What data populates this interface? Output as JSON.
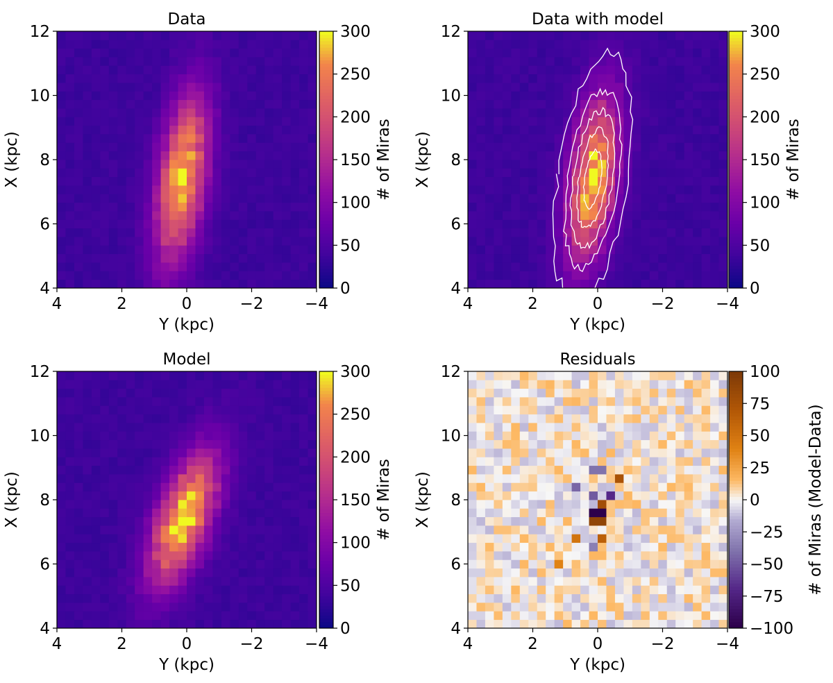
{
  "chart_data": [
    {
      "type": "heatmap",
      "title": "Data",
      "xlabel": "Y (kpc)",
      "ylabel": "X (kpc)",
      "xlim": [
        4,
        -4
      ],
      "ylim": [
        4,
        12
      ],
      "xticks": [
        "4",
        "2",
        "0",
        "−2",
        "−4"
      ],
      "yticks": [
        "4",
        "6",
        "8",
        "10",
        "12"
      ],
      "colorbar": {
        "label": "# of Miras",
        "cmap": "plasma",
        "range": [
          0,
          300
        ],
        "ticks": [
          "0",
          "50",
          "100",
          "150",
          "200",
          "250",
          "300"
        ]
      },
      "blob": {
        "peak": 290,
        "center_y_kpc": 0.15,
        "center_x_kpc": 7.4,
        "sigma_major_kpc": 1.8,
        "sigma_minor_kpc": 0.5,
        "tilt_deg": 8,
        "background": 35
      }
    },
    {
      "type": "heatmap",
      "title": "Data with model",
      "xlabel": "Y (kpc)",
      "ylabel": "X (kpc)",
      "xlim": [
        4,
        -4
      ],
      "ylim": [
        4,
        12
      ],
      "xticks": [
        "4",
        "2",
        "0",
        "−2",
        "−4"
      ],
      "yticks": [
        "4",
        "6",
        "8",
        "10",
        "12"
      ],
      "colorbar": {
        "label": "# of Miras",
        "cmap": "plasma",
        "range": [
          0,
          300
        ],
        "ticks": [
          "0",
          "50",
          "100",
          "150",
          "200",
          "250",
          "300"
        ]
      },
      "blob": {
        "peak": 290,
        "center_y_kpc": 0.15,
        "center_x_kpc": 7.4,
        "sigma_major_kpc": 1.8,
        "sigma_minor_kpc": 0.5,
        "tilt_deg": 8,
        "background": 35
      },
      "contours": {
        "color": "#ffffff",
        "levels": [
          60,
          110,
          160,
          210,
          260
        ]
      }
    },
    {
      "type": "heatmap",
      "title": "Model",
      "xlabel": "Y (kpc)",
      "ylabel": "X (kpc)",
      "xlim": [
        4,
        -4
      ],
      "ylim": [
        4,
        12
      ],
      "xticks": [
        "4",
        "2",
        "0",
        "−2",
        "−4"
      ],
      "yticks": [
        "4",
        "6",
        "8",
        "10",
        "12"
      ],
      "colorbar": {
        "label": "# of Miras",
        "cmap": "plasma",
        "range": [
          0,
          300
        ],
        "ticks": [
          "0",
          "50",
          "100",
          "150",
          "200",
          "250",
          "300"
        ]
      },
      "blob": {
        "peak": 300,
        "center_y_kpc": 0.1,
        "center_x_kpc": 7.4,
        "sigma_major_kpc": 1.5,
        "sigma_minor_kpc": 0.55,
        "tilt_deg": 20,
        "background": 35
      }
    },
    {
      "type": "heatmap",
      "title": "Residuals",
      "xlabel": "Y (kpc)",
      "ylabel": "X (kpc)",
      "xlim": [
        4,
        -4
      ],
      "ylim": [
        4,
        12
      ],
      "xticks": [
        "4",
        "2",
        "0",
        "−2",
        "−4"
      ],
      "yticks": [
        "4",
        "6",
        "8",
        "10",
        "12"
      ],
      "colorbar": {
        "label": "# of Miras (Model-Data)",
        "cmap": "PuOr_r",
        "range": [
          -100,
          100
        ],
        "ticks": [
          "100",
          "75",
          "50",
          "25",
          "0",
          "−25",
          "−50",
          "−75",
          "−100"
        ]
      },
      "strong_cells": [
        {
          "y_kpc": 0.0,
          "x_kpc": 7.7,
          "value": -100
        },
        {
          "y_kpc": 0.0,
          "x_kpc": 7.3,
          "value": 90
        },
        {
          "y_kpc": -0.2,
          "x_kpc": 7.9,
          "value": 80
        },
        {
          "y_kpc": -0.6,
          "x_kpc": 8.7,
          "value": 75
        },
        {
          "y_kpc": -0.2,
          "x_kpc": 6.9,
          "value": 65
        },
        {
          "y_kpc": 0.6,
          "x_kpc": 6.9,
          "value": 50
        },
        {
          "y_kpc": -0.4,
          "x_kpc": 8.1,
          "value": -70
        },
        {
          "y_kpc": 0.2,
          "x_kpc": 8.1,
          "value": -50
        },
        {
          "y_kpc": 0.6,
          "x_kpc": 8.3,
          "value": -45
        },
        {
          "y_kpc": 0.0,
          "x_kpc": 8.9,
          "value": -40
        },
        {
          "y_kpc": 0.2,
          "x_kpc": 6.5,
          "value": -35
        },
        {
          "y_kpc": 1.2,
          "x_kpc": 6.1,
          "value": 40
        }
      ]
    }
  ]
}
